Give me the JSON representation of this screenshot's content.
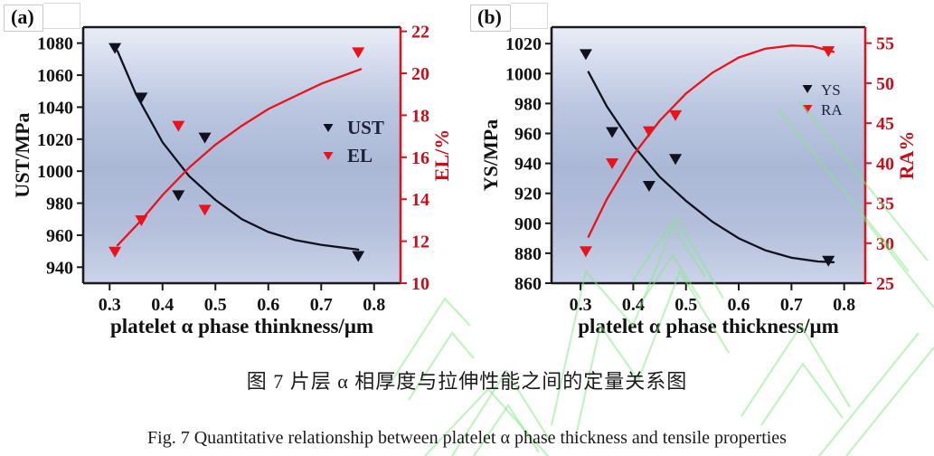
{
  "figure": {
    "caption_cn": "图 7 片层 α 相厚度与拉伸性能之间的定量关系图",
    "caption_en": "Fig. 7 Quantitative relationship between platelet α phase thickness and tensile properties"
  },
  "colors": {
    "axis_black": "#1a1a1a",
    "axis_red": "#d01722",
    "series_black": "#10111f",
    "series_red": "#e8131b",
    "tick_label_black": "#121212",
    "tick_label_red": "#c3101c",
    "legend_text": "#1b2136",
    "watermark_green": "#86e886",
    "plot_gradient": [
      [
        "0%",
        "#e9edf7"
      ],
      [
        "30%",
        "#bcc7e1"
      ],
      [
        "55%",
        "#aab8d6"
      ],
      [
        "78%",
        "#b4bfdb"
      ],
      [
        "100%",
        "#cad3e8"
      ]
    ]
  },
  "chart_data": [
    {
      "panel_label": "(a)",
      "type": "scatter",
      "xlabel": "platelet α phase thinkness/μm",
      "ylabel_left": "UST/MPa",
      "ylabel_right": "EL/%",
      "xlim": [
        0.25,
        0.85
      ],
      "x_ticks": [
        0.3,
        0.4,
        0.5,
        0.6,
        0.7,
        0.8
      ],
      "ylim_left": [
        930,
        1090
      ],
      "y_ticks_left": [
        940,
        960,
        980,
        1000,
        1020,
        1040,
        1060,
        1080
      ],
      "ylim_right": [
        10,
        22.2
      ],
      "y_ticks_right": [
        10,
        12,
        14,
        16,
        18,
        20,
        22
      ],
      "grid": false,
      "legend_position": "inside-right",
      "series": [
        {
          "name": "UST",
          "axis": "left",
          "color_key": "series_black",
          "marker": "triangle-down",
          "points": [
            [
              0.31,
              1077
            ],
            [
              0.36,
              1046
            ],
            [
              0.43,
              985
            ],
            [
              0.48,
              1021
            ],
            [
              0.77,
              947
            ]
          ],
          "fit_curve": [
            [
              0.315,
              1075
            ],
            [
              0.35,
              1048
            ],
            [
              0.4,
              1018
            ],
            [
              0.45,
              997
            ],
            [
              0.5,
              982
            ],
            [
              0.55,
              970
            ],
            [
              0.6,
              962
            ],
            [
              0.65,
              957
            ],
            [
              0.7,
              954
            ],
            [
              0.77,
              951
            ]
          ]
        },
        {
          "name": "EL",
          "axis": "right",
          "color_key": "series_red",
          "marker": "triangle-down",
          "points": [
            [
              0.31,
              11.5
            ],
            [
              0.36,
              13.0
            ],
            [
              0.43,
              17.5
            ],
            [
              0.48,
              13.5
            ],
            [
              0.77,
              21.0
            ]
          ],
          "fit_curve": [
            [
              0.315,
              11.8
            ],
            [
              0.36,
              13.0
            ],
            [
              0.4,
              14.2
            ],
            [
              0.45,
              15.5
            ],
            [
              0.5,
              16.6
            ],
            [
              0.55,
              17.5
            ],
            [
              0.6,
              18.3
            ],
            [
              0.65,
              18.9
            ],
            [
              0.7,
              19.5
            ],
            [
              0.775,
              20.2
            ]
          ]
        }
      ]
    },
    {
      "panel_label": "(b)",
      "type": "scatter",
      "xlabel": "platelet α phase thickness/μm",
      "ylabel_left": "YS/MPa",
      "ylabel_right": "RA%",
      "xlim": [
        0.245,
        0.84
      ],
      "x_ticks": [
        0.3,
        0.4,
        0.5,
        0.6,
        0.7,
        0.8
      ],
      "ylim_left": [
        860,
        1031
      ],
      "y_ticks_left": [
        860,
        880,
        900,
        920,
        940,
        960,
        980,
        1000,
        1020
      ],
      "ylim_right": [
        25,
        57
      ],
      "y_ticks_right": [
        25,
        30,
        35,
        40,
        45,
        50,
        55
      ],
      "grid": false,
      "legend_position": "inside-right",
      "series": [
        {
          "name": "YS",
          "axis": "left",
          "color_key": "series_black",
          "marker": "triangle-down",
          "points": [
            [
              0.31,
              1013
            ],
            [
              0.36,
              961
            ],
            [
              0.43,
              925
            ],
            [
              0.48,
              943
            ],
            [
              0.77,
              875
            ]
          ],
          "fit_curve": [
            [
              0.315,
              1001
            ],
            [
              0.35,
              978
            ],
            [
              0.4,
              952
            ],
            [
              0.45,
              931
            ],
            [
              0.5,
              915
            ],
            [
              0.55,
              901
            ],
            [
              0.6,
              890
            ],
            [
              0.65,
              882
            ],
            [
              0.7,
              877
            ],
            [
              0.75,
              874.5
            ],
            [
              0.78,
              874
            ]
          ]
        },
        {
          "name": "RA",
          "axis": "right",
          "color_key": "series_red",
          "marker": "triangle-down",
          "points": [
            [
              0.31,
              29
            ],
            [
              0.36,
              40
            ],
            [
              0.43,
              44
            ],
            [
              0.48,
              46
            ],
            [
              0.77,
              54
            ]
          ],
          "fit_curve": [
            [
              0.315,
              30.8
            ],
            [
              0.35,
              35.5
            ],
            [
              0.4,
              41.0
            ],
            [
              0.45,
              45.3
            ],
            [
              0.5,
              48.7
            ],
            [
              0.55,
              51.3
            ],
            [
              0.6,
              53.2
            ],
            [
              0.65,
              54.3
            ],
            [
              0.7,
              54.7
            ],
            [
              0.74,
              54.6
            ],
            [
              0.78,
              53.9
            ]
          ]
        }
      ]
    }
  ]
}
